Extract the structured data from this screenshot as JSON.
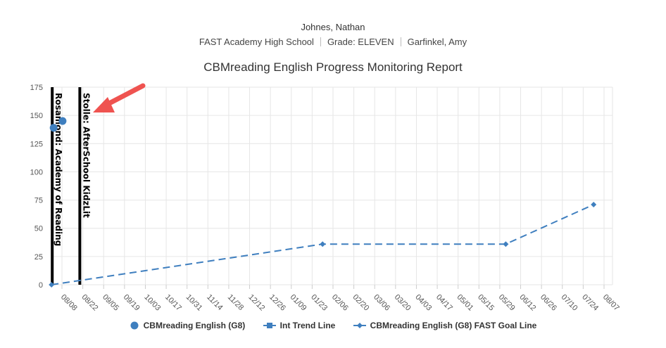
{
  "header": {
    "student_name": "Johnes, Nathan",
    "school": "FAST Academy High School",
    "grade": "Grade: ELEVEN",
    "teacher": "Garfinkel, Amy"
  },
  "chart_data": {
    "type": "line",
    "title": "CBMreading English Progress Monitoring Report",
    "x_labels": [
      "08/08",
      "08/22",
      "09/05",
      "09/19",
      "10/03",
      "10/17",
      "10/31",
      "11/14",
      "11/28",
      "12/12",
      "12/26",
      "01/09",
      "01/23",
      "02/06",
      "02/20",
      "03/06",
      "03/20",
      "04/03",
      "04/17",
      "05/01",
      "05/15",
      "05/29",
      "06/12",
      "06/26",
      "07/10",
      "07/24",
      "08/07"
    ],
    "ylim": [
      0,
      175
    ],
    "y_ticks": [
      0,
      25,
      50,
      75,
      100,
      125,
      150,
      175
    ],
    "grid": true,
    "legend_position": "bottom",
    "series": [
      {
        "name": "CBMreading English (G8)",
        "kind": "scatter",
        "color": "#3f7fbf",
        "points": [
          {
            "x": "08/01",
            "y": 139
          },
          {
            "x": "08/07",
            "y": 145
          }
        ]
      },
      {
        "name": "Int Trend Line",
        "kind": "line",
        "color": "#3f7fbf",
        "points": []
      },
      {
        "name": "CBMreading English (G8) FAST Goal Line",
        "kind": "dashed-line",
        "color": "#3f7fbf",
        "points": [
          {
            "x": "08/01",
            "y": 0
          },
          {
            "x": "01/30",
            "y": 36
          },
          {
            "x": "06/02",
            "y": 36
          },
          {
            "x": "07/31",
            "y": 71
          }
        ]
      }
    ],
    "annotations": [
      {
        "label": "Rosamond: Academy of Reading",
        "x": "08/01"
      },
      {
        "label": "Stolle: AfterSchool KidzLit",
        "x": "08/20"
      }
    ],
    "callout": "red-arrow"
  }
}
